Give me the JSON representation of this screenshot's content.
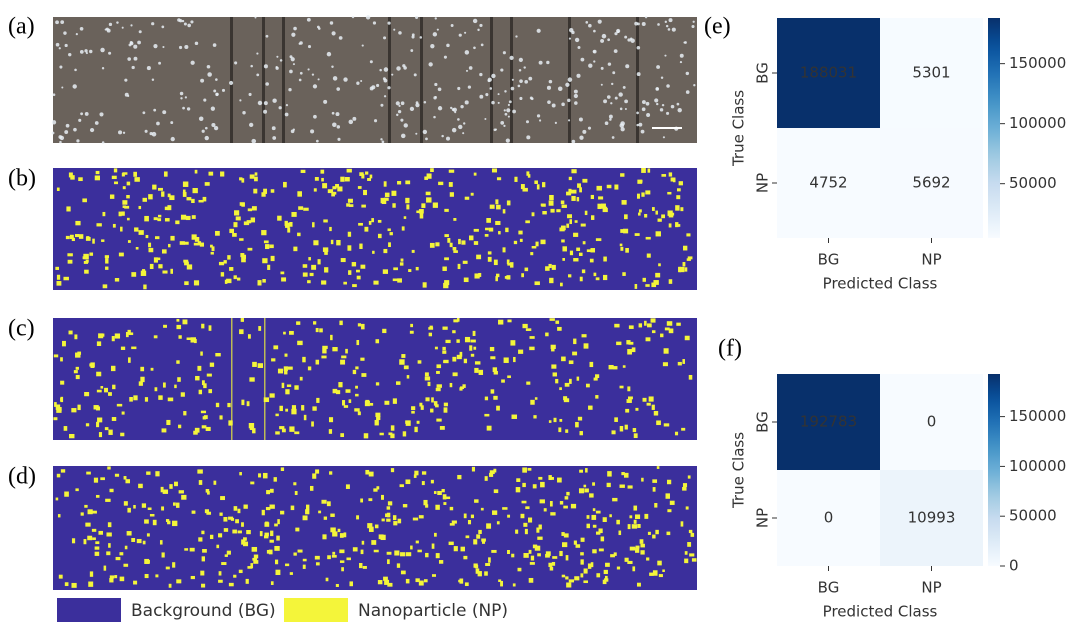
{
  "panel_labels": [
    "(a)",
    "(b)",
    "(c)",
    "(d)",
    "(e)",
    "(f)"
  ],
  "legend": [
    {
      "label": "Background (BG)",
      "color": "#3b2f9c"
    },
    {
      "label": "Nanoparticle (NP)",
      "color": "#f4f53a"
    }
  ],
  "chart_data": [
    {
      "type": "heatmap",
      "x_label": "Predicted Class",
      "y_label": "True Class",
      "x_categories": [
        "BG",
        "NP"
      ],
      "y_categories": [
        "BG",
        "NP"
      ],
      "values": [
        [
          188031,
          5301
        ],
        [
          4752,
          5692
        ]
      ],
      "colormap": "Blues",
      "clim": [
        4752,
        188031
      ],
      "cticks": [
        50000,
        100000,
        150000
      ]
    },
    {
      "type": "heatmap",
      "x_label": "Predicted Class",
      "y_label": "True Class",
      "x_categories": [
        "BG",
        "NP"
      ],
      "y_categories": [
        "BG",
        "NP"
      ],
      "values": [
        [
          192783,
          0
        ],
        [
          0,
          10993
        ]
      ],
      "colormap": "Blues",
      "clim": [
        0,
        192783
      ],
      "cticks": [
        0,
        50000,
        100000,
        150000
      ]
    }
  ]
}
